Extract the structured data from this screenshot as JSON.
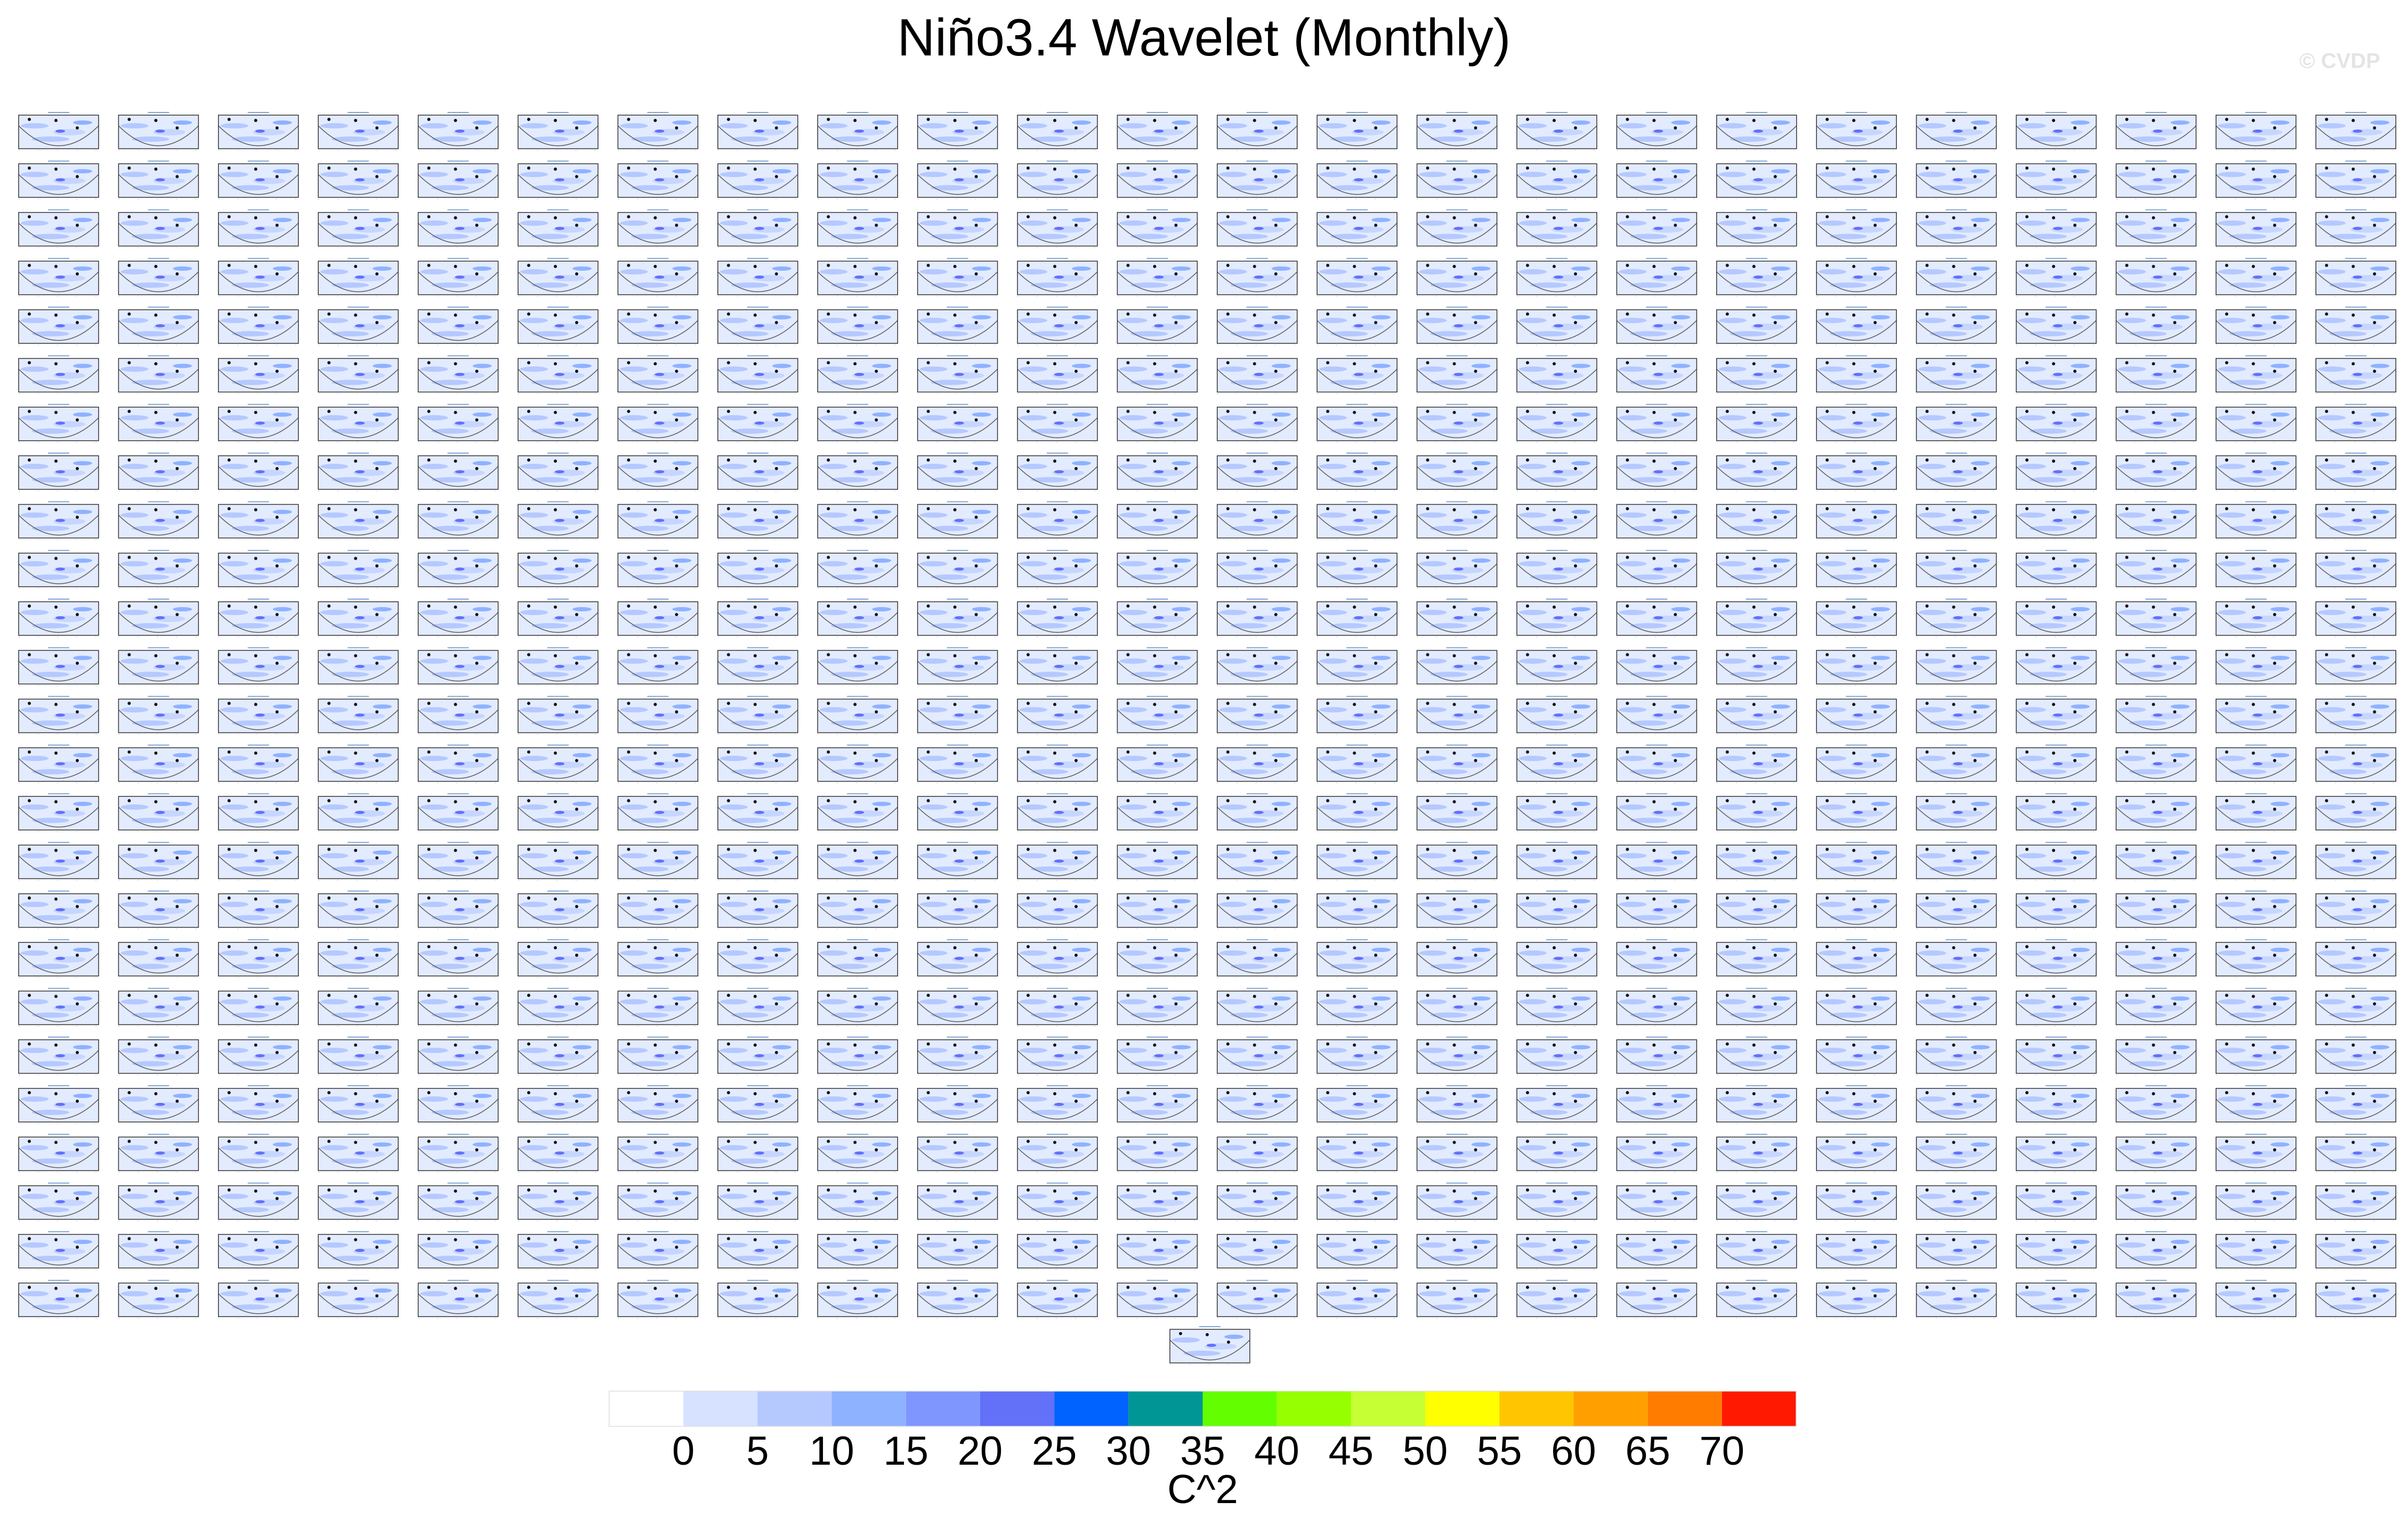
{
  "title": "Niño3.4 Wavelet (Monthly)",
  "watermark": "© CVDP",
  "colorbar": {
    "colors": [
      "#ffffff",
      "#d6e2ff",
      "#b5c9ff",
      "#8eb2ff",
      "#7f96ff",
      "#6370f8",
      "#0063ff",
      "#009696",
      "#63ff00",
      "#96ff00",
      "#c6ff33",
      "#ffff00",
      "#ffc600",
      "#ffa000",
      "#ff7c00",
      "#ff1900"
    ],
    "ticks": [
      0,
      5,
      10,
      15,
      20,
      25,
      30,
      35,
      40,
      45,
      50,
      55,
      60,
      65,
      70
    ],
    "label": "C^2"
  }
}
